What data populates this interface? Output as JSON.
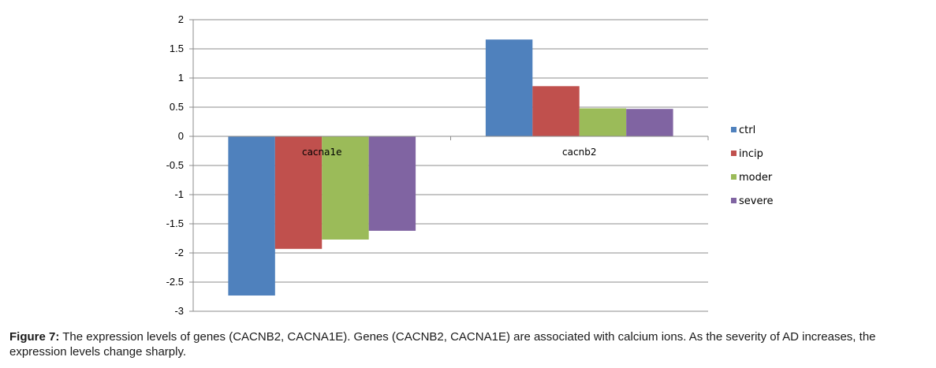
{
  "chart_data": {
    "type": "bar",
    "categories": [
      "cacna1e",
      "cacnb2"
    ],
    "series": [
      {
        "name": "ctrl",
        "color": "#4F81BD",
        "values": [
          -2.73,
          1.66
        ]
      },
      {
        "name": "incip",
        "color": "#C0504D",
        "values": [
          -1.93,
          0.86
        ]
      },
      {
        "name": "moder",
        "color": "#9BBB59",
        "values": [
          -1.77,
          0.48
        ]
      },
      {
        "name": "severe",
        "color": "#8064A2",
        "values": [
          -1.62,
          0.47
        ]
      }
    ],
    "ylim": [
      -3,
      2
    ],
    "yticks": [
      "2",
      "1.5",
      "1",
      "0.5",
      "0",
      "-0.5",
      "-1",
      "-1.5",
      "-2",
      "-2.5",
      "-3"
    ],
    "grid": true,
    "legend": "right"
  },
  "caption": {
    "label": "Figure 7:",
    "text": " The expression levels of genes (CACNB2, CACNA1E). Genes (CACNB2, CACNA1E) are associated with calcium ions. As the severity of AD increases, the expression levels change sharply."
  }
}
